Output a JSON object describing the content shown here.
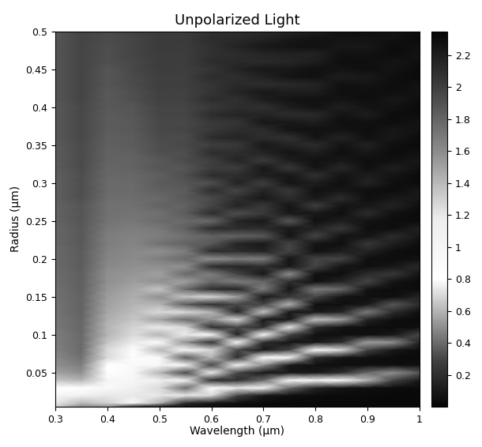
{
  "chart_data": {
    "type": "heatmap",
    "title": "Unpolarized Light",
    "x_label": "Wavelength (µm)",
    "y_label": "Radius (µm)",
    "xlim": [
      0.3,
      1
    ],
    "ylim": [
      0.005,
      0.5
    ],
    "xticks": [
      0.3,
      0.4,
      0.5,
      0.6,
      0.7,
      0.8,
      0.9,
      1
    ],
    "yticks": [
      0.05,
      0.1,
      0.15,
      0.2,
      0.25,
      0.3,
      0.35,
      0.4,
      0.45,
      0.5
    ],
    "colorbar_range": [
      0,
      2.35
    ],
    "colorbar_ticks": [
      0.2,
      0.4,
      0.6,
      0.8,
      1,
      1.2,
      1.4,
      1.6,
      1.8,
      2,
      2.2
    ],
    "x": [
      0.3,
      0.35,
      0.4,
      0.45,
      0.5,
      0.55,
      0.6,
      0.65,
      0.7,
      0.75,
      0.8,
      0.85,
      0.9,
      0.95,
      1
    ],
    "y": [
      0.005,
      0.01,
      0.02,
      0.03,
      0.04,
      0.05,
      0.06,
      0.07,
      0.08,
      0.09,
      0.1,
      0.11,
      0.12,
      0.13,
      0.14,
      0.15,
      0.16,
      0.17,
      0.18,
      0.19,
      0.2,
      0.21,
      0.22,
      0.23,
      0.24,
      0.25,
      0.26,
      0.27,
      0.28,
      0.29,
      0.3,
      0.31,
      0.32,
      0.33,
      0.34,
      0.35,
      0.36,
      0.37,
      0.38,
      0.39,
      0.4,
      0.41,
      0.42,
      0.43,
      0.44,
      0.45,
      0.46,
      0.47,
      0.48,
      0.49,
      0.5
    ],
    "z": [
      [
        1.3,
        1.2,
        1.0,
        0.8,
        0.65,
        0.55,
        0.5,
        0.48,
        0.46,
        0.45,
        0.45,
        0.44,
        0.44,
        0.43,
        0.43,
        0.42,
        0.42,
        0.41,
        0.41,
        0.4,
        0.4,
        0.4,
        0.39,
        0.39,
        0.39,
        0.38,
        0.38,
        0.38,
        0.37,
        0.37,
        0.37,
        0.37,
        0.36,
        0.36,
        0.36,
        0.36,
        0.35,
        0.35,
        0.35,
        0.35,
        0.35,
        0.34,
        0.34,
        0.34,
        0.34,
        0.34,
        0.34,
        0.34,
        0.34,
        0.34,
        0.34
      ],
      [
        1.6,
        1.4,
        1.1,
        0.8,
        0.6,
        0.5,
        0.45,
        0.42,
        0.4,
        0.4,
        0.4,
        0.39,
        0.39,
        0.38,
        0.38,
        0.38,
        0.37,
        0.37,
        0.37,
        0.36,
        0.36,
        0.36,
        0.35,
        0.35,
        0.35,
        0.34,
        0.34,
        0.34,
        0.33,
        0.33,
        0.33,
        0.33,
        0.32,
        0.32,
        0.32,
        0.32,
        0.31,
        0.31,
        0.31,
        0.31,
        0.31,
        0.3,
        0.3,
        0.3,
        0.3,
        0.3,
        0.3,
        0.3,
        0.3,
        0.3,
        0.3
      ],
      [
        0.5,
        1.3,
        1.2,
        0.9,
        1.0,
        0.8,
        0.8,
        0.7,
        0.7,
        0.65,
        0.6,
        0.6,
        0.58,
        0.56,
        0.55,
        0.54,
        0.52,
        0.5,
        0.5,
        0.48,
        0.47,
        0.46,
        0.45,
        0.45,
        0.44,
        0.43,
        0.42,
        0.42,
        0.41,
        0.4,
        0.4,
        0.39,
        0.39,
        0.38,
        0.38,
        0.37,
        0.37,
        0.36,
        0.36,
        0.36,
        0.35,
        0.35,
        0.35,
        0.34,
        0.34,
        0.34,
        0.33,
        0.33,
        0.33,
        0.32,
        0.32
      ],
      [
        0.15,
        0.9,
        1.2,
        1.1,
        1.0,
        0.95,
        0.9,
        0.85,
        0.8,
        0.75,
        0.7,
        0.68,
        0.65,
        0.62,
        0.6,
        0.58,
        0.56,
        0.54,
        0.52,
        0.5,
        0.49,
        0.48,
        0.47,
        0.46,
        0.45,
        0.44,
        0.43,
        0.42,
        0.41,
        0.4,
        0.4,
        0.39,
        0.38,
        0.38,
        0.37,
        0.36,
        0.36,
        0.35,
        0.35,
        0.34,
        0.34,
        0.33,
        0.33,
        0.32,
        0.32,
        0.31,
        0.31,
        0.3,
        0.3,
        0.3,
        0.29
      ],
      [
        0.05,
        0.6,
        1.2,
        0.7,
        1.1,
        0.6,
        0.95,
        0.9,
        0.6,
        0.85,
        0.6,
        0.75,
        0.55,
        0.7,
        0.6,
        0.5,
        0.65,
        0.5,
        0.55,
        0.5,
        0.45,
        0.5,
        0.42,
        0.45,
        0.44,
        0.4,
        0.42,
        0.38,
        0.4,
        0.37,
        0.36,
        0.37,
        0.34,
        0.35,
        0.33,
        0.33,
        0.32,
        0.31,
        0.31,
        0.3,
        0.3,
        0.29,
        0.29,
        0.28,
        0.28,
        0.27,
        0.27,
        0.27,
        0.26,
        0.26,
        0.26
      ],
      [
        0.05,
        0.2,
        1.2,
        0.4,
        1.1,
        0.3,
        1.0,
        0.35,
        0.9,
        0.5,
        0.75,
        0.7,
        0.4,
        0.7,
        0.35,
        0.65,
        0.4,
        0.55,
        0.4,
        0.5,
        0.4,
        0.45,
        0.38,
        0.42,
        0.37,
        0.4,
        0.36,
        0.38,
        0.35,
        0.36,
        0.34,
        0.33,
        0.34,
        0.32,
        0.33,
        0.31,
        0.32,
        0.3,
        0.31,
        0.3,
        0.3,
        0.29,
        0.29,
        0.28,
        0.28,
        0.28,
        0.27,
        0.27,
        0.27,
        0.26,
        0.26
      ],
      [
        0.05,
        0.1,
        0.7,
        0.8,
        0.2,
        1.1,
        0.3,
        0.6,
        0.7,
        0.2,
        0.9,
        0.2,
        0.5,
        0.6,
        0.2,
        0.7,
        0.2,
        0.4,
        0.45,
        0.2,
        0.5,
        0.2,
        0.35,
        0.38,
        0.2,
        0.4,
        0.2,
        0.3,
        0.32,
        0.2,
        0.33,
        0.2,
        0.27,
        0.28,
        0.2,
        0.28,
        0.2,
        0.25,
        0.25,
        0.2,
        0.25,
        0.2,
        0.23,
        0.23,
        0.2,
        0.23,
        0.2,
        0.22,
        0.22,
        0.2,
        0.22
      ],
      [
        0.03,
        0.05,
        0.3,
        1.2,
        0.2,
        0.3,
        1.0,
        0.2,
        0.3,
        0.85,
        0.15,
        0.3,
        0.7,
        0.15,
        0.3,
        0.55,
        0.15,
        0.45,
        0.3,
        0.15,
        0.45,
        0.2,
        0.15,
        0.38,
        0.2,
        0.15,
        0.33,
        0.15,
        0.2,
        0.3,
        0.15,
        0.2,
        0.27,
        0.15,
        0.2,
        0.25,
        0.15,
        0.2,
        0.23,
        0.15,
        0.2,
        0.22,
        0.15,
        0.18,
        0.21,
        0.15,
        0.18,
        0.2,
        0.15,
        0.18,
        0.2
      ],
      [
        0.02,
        0.03,
        0.1,
        1.0,
        0.4,
        0.1,
        0.5,
        0.8,
        0.1,
        0.2,
        0.85,
        0.2,
        0.1,
        0.65,
        0.3,
        0.1,
        0.45,
        0.4,
        0.1,
        0.2,
        0.45,
        0.15,
        0.1,
        0.35,
        0.2,
        0.1,
        0.25,
        0.25,
        0.1,
        0.15,
        0.28,
        0.12,
        0.1,
        0.26,
        0.15,
        0.1,
        0.2,
        0.2,
        0.1,
        0.15,
        0.22,
        0.12,
        0.1,
        0.2,
        0.14,
        0.1,
        0.18,
        0.16,
        0.1,
        0.15,
        0.18
      ],
      [
        0.02,
        0.02,
        0.05,
        0.4,
        0.9,
        0.1,
        0.1,
        0.9,
        0.3,
        0.08,
        0.3,
        0.75,
        0.1,
        0.1,
        0.6,
        0.25,
        0.08,
        0.2,
        0.5,
        0.1,
        0.08,
        0.3,
        0.3,
        0.08,
        0.1,
        0.35,
        0.1,
        0.08,
        0.2,
        0.25,
        0.08,
        0.1,
        0.25,
        0.12,
        0.08,
        0.15,
        0.22,
        0.08,
        0.1,
        0.2,
        0.12,
        0.08,
        0.12,
        0.18,
        0.08,
        0.1,
        0.16,
        0.14,
        0.08,
        0.1,
        0.15
      ],
      [
        0.02,
        0.02,
        0.04,
        0.15,
        0.9,
        0.1,
        0.06,
        0.2,
        0.8,
        0.1,
        0.06,
        0.2,
        0.65,
        0.1,
        0.06,
        0.3,
        0.45,
        0.06,
        0.06,
        0.3,
        0.3,
        0.06,
        0.08,
        0.3,
        0.15,
        0.06,
        0.1,
        0.28,
        0.1,
        0.06,
        0.12,
        0.22,
        0.08,
        0.06,
        0.12,
        0.2,
        0.08,
        0.06,
        0.12,
        0.18,
        0.07,
        0.06,
        0.12,
        0.15,
        0.06,
        0.06,
        0.12,
        0.14,
        0.06,
        0.07,
        0.12
      ],
      [
        0.02,
        0.02,
        0.03,
        0.08,
        0.85,
        0.2,
        0.05,
        0.08,
        0.7,
        0.2,
        0.05,
        0.08,
        0.55,
        0.15,
        0.05,
        0.08,
        0.4,
        0.15,
        0.05,
        0.08,
        0.3,
        0.12,
        0.05,
        0.08,
        0.25,
        0.12,
        0.05,
        0.08,
        0.2,
        0.1,
        0.05,
        0.08,
        0.17,
        0.1,
        0.05,
        0.07,
        0.15,
        0.08,
        0.05,
        0.07,
        0.13,
        0.08,
        0.05,
        0.06,
        0.12,
        0.08,
        0.05,
        0.06,
        0.1,
        0.08,
        0.05
      ],
      [
        0.02,
        0.02,
        0.03,
        0.05,
        0.6,
        0.4,
        0.05,
        0.05,
        0.3,
        0.55,
        0.05,
        0.05,
        0.15,
        0.45,
        0.1,
        0.05,
        0.08,
        0.3,
        0.2,
        0.05,
        0.05,
        0.15,
        0.25,
        0.08,
        0.05,
        0.08,
        0.2,
        0.1,
        0.05,
        0.05,
        0.15,
        0.12,
        0.05,
        0.05,
        0.1,
        0.14,
        0.06,
        0.05,
        0.06,
        0.12,
        0.08,
        0.05,
        0.05,
        0.08,
        0.11,
        0.05,
        0.05,
        0.06,
        0.1,
        0.07,
        0.05
      ],
      [
        0.02,
        0.02,
        0.02,
        0.04,
        0.3,
        0.5,
        0.05,
        0.04,
        0.1,
        0.5,
        0.1,
        0.04,
        0.05,
        0.2,
        0.35,
        0.05,
        0.04,
        0.08,
        0.25,
        0.1,
        0.04,
        0.05,
        0.12,
        0.2,
        0.05,
        0.04,
        0.06,
        0.15,
        0.1,
        0.04,
        0.05,
        0.08,
        0.13,
        0.06,
        0.04,
        0.05,
        0.1,
        0.1,
        0.04,
        0.04,
        0.07,
        0.1,
        0.05,
        0.04,
        0.05,
        0.08,
        0.08,
        0.04,
        0.04,
        0.06,
        0.07
      ],
      [
        0.02,
        0.02,
        0.02,
        0.03,
        0.1,
        0.35,
        0.05,
        0.03,
        0.04,
        0.15,
        0.3,
        0.05,
        0.03,
        0.05,
        0.2,
        0.15,
        0.04,
        0.03,
        0.08,
        0.18,
        0.06,
        0.03,
        0.04,
        0.1,
        0.13,
        0.04,
        0.03,
        0.05,
        0.1,
        0.1,
        0.04,
        0.03,
        0.06,
        0.1,
        0.06,
        0.03,
        0.04,
        0.07,
        0.08,
        0.04,
        0.03,
        0.05,
        0.07,
        0.07,
        0.03,
        0.03,
        0.05,
        0.07,
        0.06,
        0.03,
        0.04
      ]
    ]
  }
}
